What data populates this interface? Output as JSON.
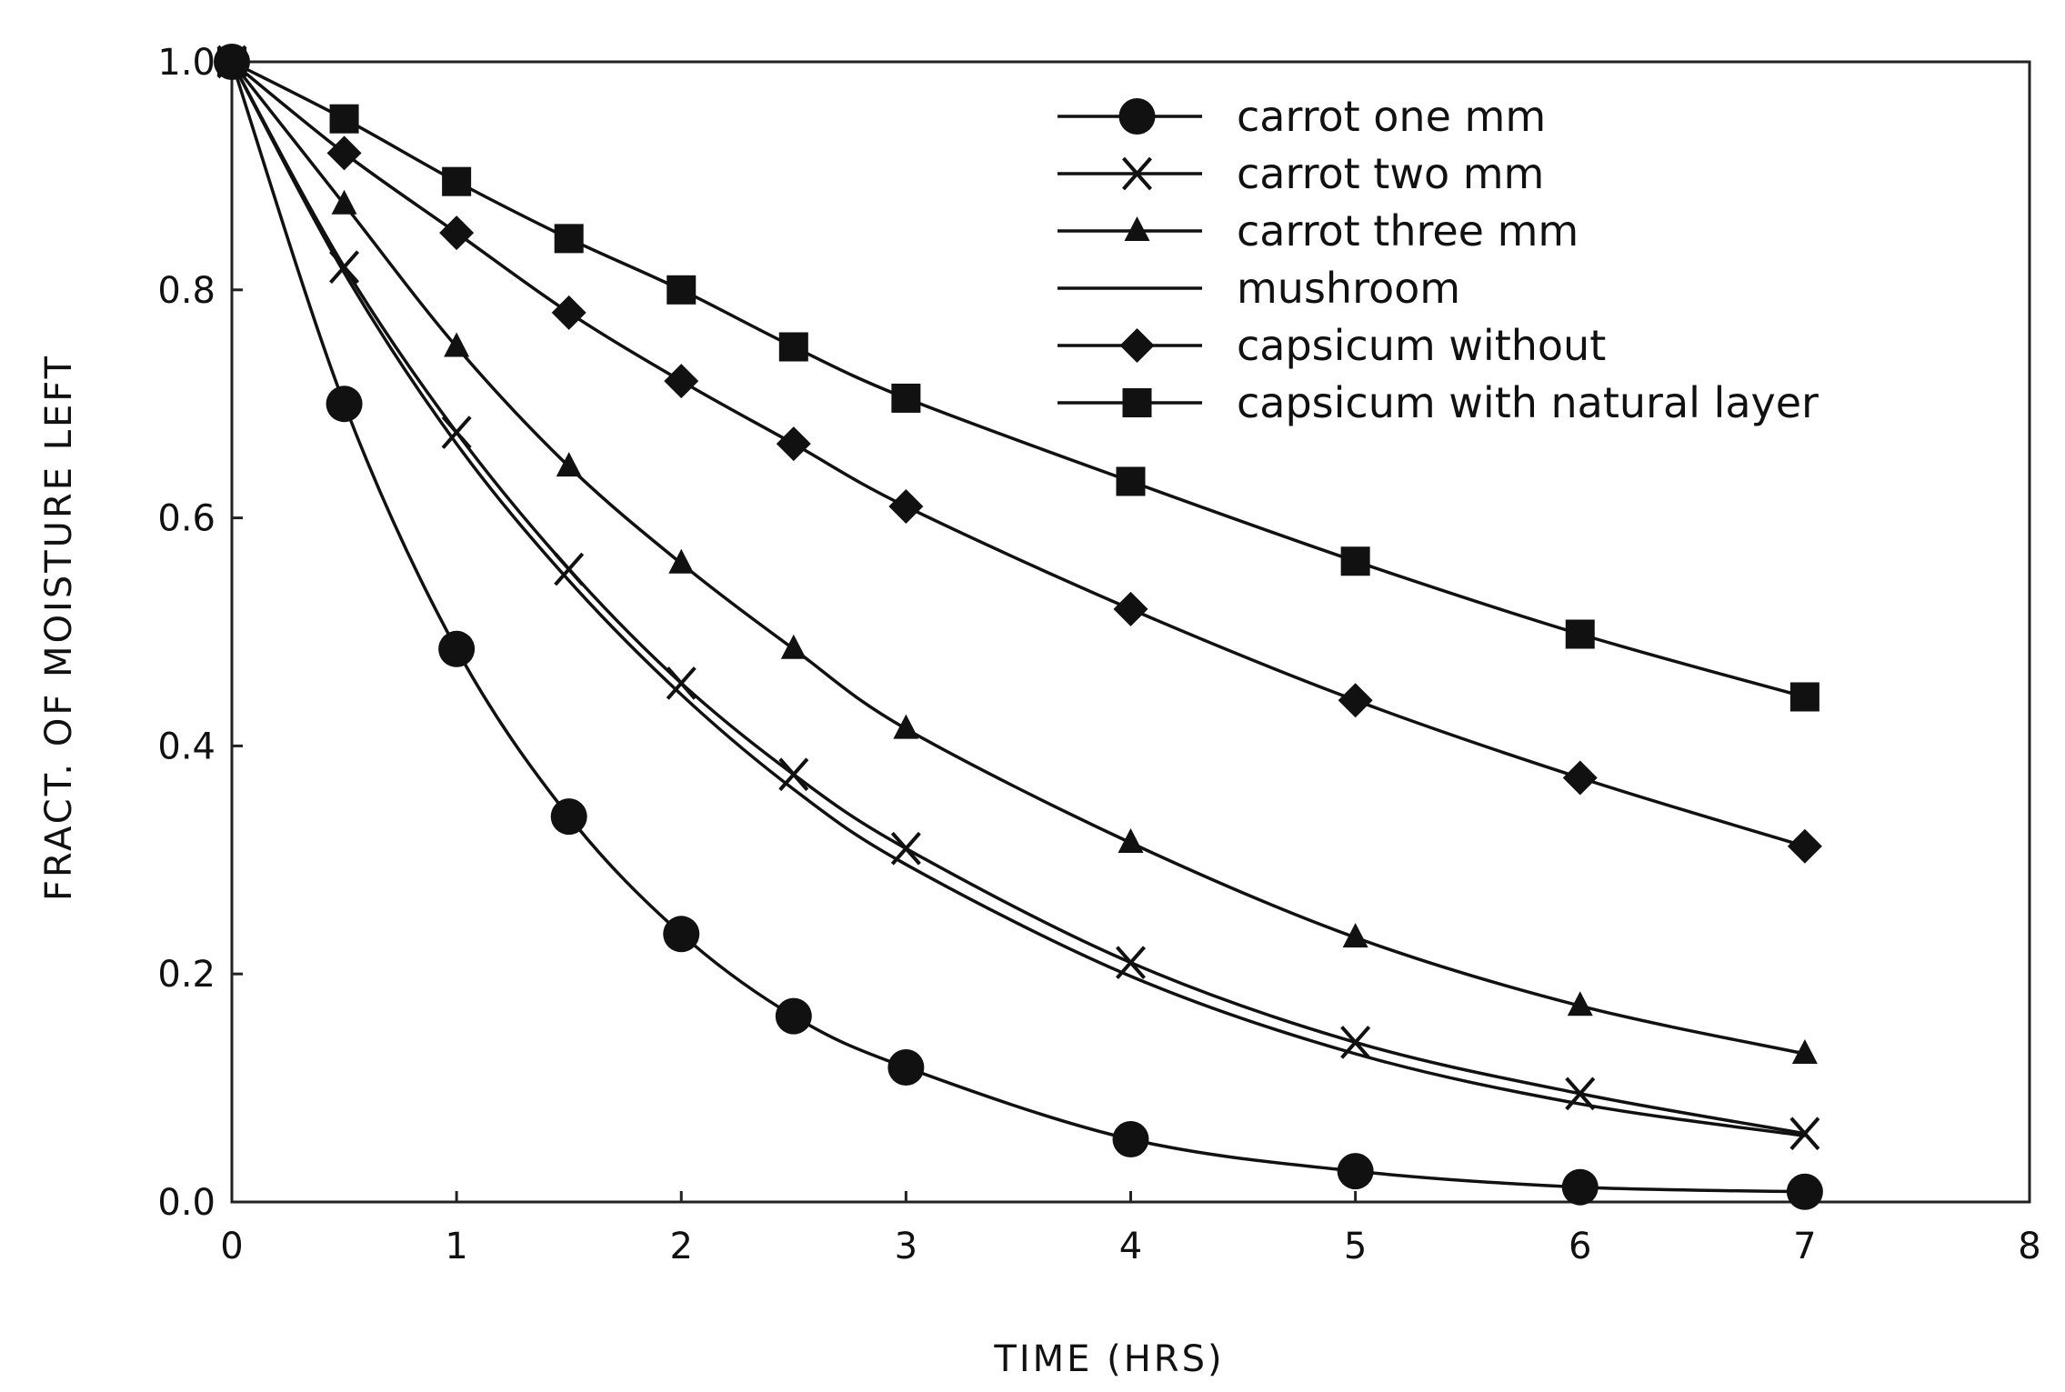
{
  "chart_data": {
    "type": "line",
    "title": "",
    "xlabel": "TIME (HRS)",
    "ylabel": "FRACT. OF MOISTURE LEFT",
    "xlim": [
      0,
      8
    ],
    "ylim": [
      0,
      1
    ],
    "xticks": [
      0,
      1,
      2,
      3,
      4,
      5,
      6,
      7,
      8
    ],
    "xtick_labels": [
      "0",
      "1",
      "2",
      "3",
      "4",
      "5",
      "6",
      "7",
      "8"
    ],
    "yticks": [
      0,
      0.2,
      0.4,
      0.6,
      0.8,
      1.0
    ],
    "ytick_labels": [
      "0.0",
      "0.2",
      "0.4",
      "0.6",
      "0.8",
      "1.0"
    ],
    "grid": false,
    "legend_position": "top-right",
    "series": [
      {
        "name": "carrot one mm",
        "marker": "circle",
        "x": [
          0,
          0.5,
          1,
          1.5,
          2,
          2.5,
          3,
          4,
          5,
          6,
          7
        ],
        "values": [
          1.0,
          0.7,
          0.485,
          0.338,
          0.235,
          0.163,
          0.118,
          0.055,
          0.027,
          0.013,
          0.009
        ]
      },
      {
        "name": "carrot two mm",
        "marker": "x",
        "x": [
          0,
          0.5,
          1,
          1.5,
          2,
          2.5,
          3,
          4,
          5,
          6,
          7
        ],
        "values": [
          1.0,
          0.82,
          0.675,
          0.555,
          0.455,
          0.375,
          0.31,
          0.21,
          0.14,
          0.095,
          0.06
        ]
      },
      {
        "name": "carrot three mm",
        "marker": "triangle",
        "x": [
          0,
          0.5,
          1,
          1.5,
          2,
          2.5,
          3,
          4,
          5,
          6,
          7
        ],
        "values": [
          1.0,
          0.875,
          0.75,
          0.645,
          0.56,
          0.485,
          0.415,
          0.315,
          0.232,
          0.172,
          0.13
        ]
      },
      {
        "name": "mushroom",
        "marker": "none",
        "x": [
          0,
          0.5,
          1,
          1.5,
          2,
          2.5,
          3,
          4,
          5,
          6,
          7
        ],
        "values": [
          1.0,
          0.815,
          0.665,
          0.545,
          0.445,
          0.362,
          0.296,
          0.198,
          0.13,
          0.086,
          0.058
        ]
      },
      {
        "name": "capsicum  without",
        "marker": "diamond",
        "x": [
          0,
          0.5,
          1,
          1.5,
          2,
          2.5,
          3,
          4,
          5,
          6,
          7
        ],
        "values": [
          1.0,
          0.92,
          0.85,
          0.78,
          0.72,
          0.665,
          0.61,
          0.52,
          0.44,
          0.372,
          0.312
        ]
      },
      {
        "name": "capsicum  with natural layer",
        "marker": "square",
        "x": [
          0,
          0.5,
          1,
          1.5,
          2,
          2.5,
          3,
          4,
          5,
          6,
          7
        ],
        "values": [
          1.0,
          0.95,
          0.895,
          0.845,
          0.8,
          0.75,
          0.705,
          0.632,
          0.562,
          0.498,
          0.443
        ]
      }
    ]
  }
}
